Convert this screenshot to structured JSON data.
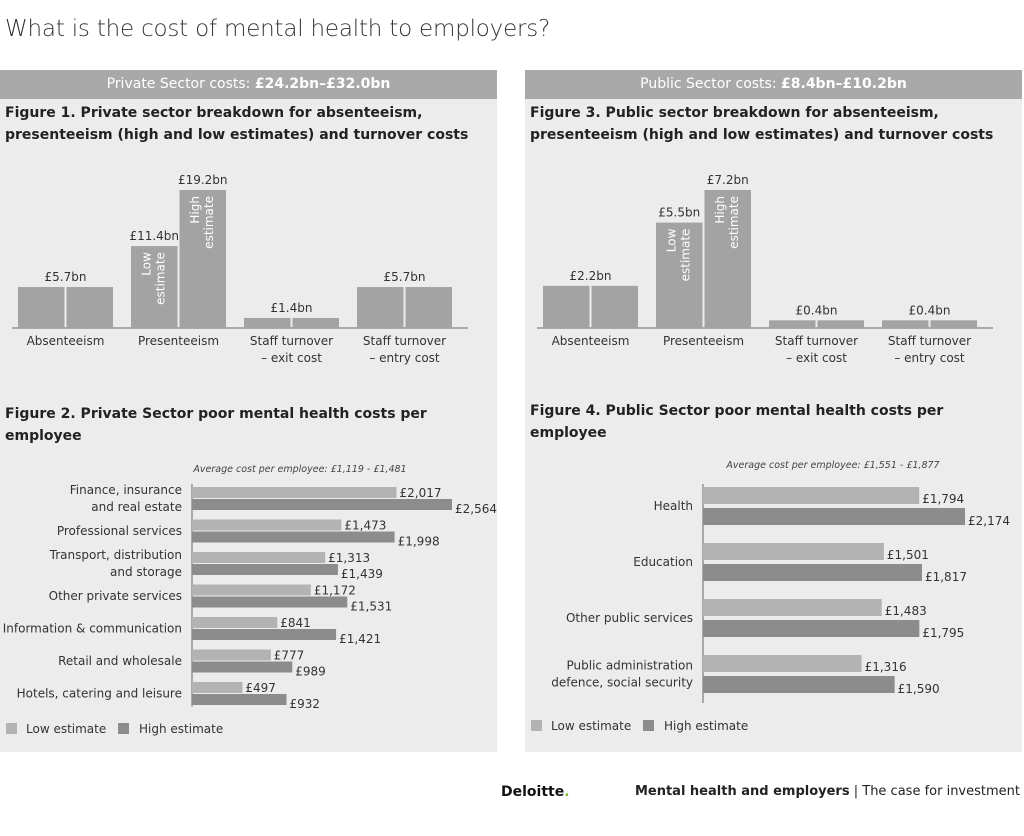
{
  "page_title": "What is the cost of mental health to employers?",
  "colors": {
    "panel_bg": "#ececec",
    "banner_bg": "#a9a9a9",
    "low": "#b3b3b3",
    "high": "#8c8c8c",
    "col": "#a3a3a3"
  },
  "private": {
    "banner_prefix": "Private Sector costs: ",
    "banner_value": "£24.2bn–£32.0bn",
    "fig1_title": "Figure 1. Private sector breakdown for absenteeism, presenteeism (high and low estimates) and turnover costs",
    "fig2_title": "Figure 2. Private Sector poor mental health costs per employee"
  },
  "public": {
    "banner_prefix": "Public Sector costs: ",
    "banner_value": "£8.4bn–£10.2bn",
    "fig3_title": "Figure 3. Public sector breakdown for absenteeism, presenteeism (high and low estimates) and turnover costs",
    "fig4_title": "Figure 4. Public Sector poor mental health costs per employee"
  },
  "legend": {
    "low": "Low estimate",
    "high": "High estimate"
  },
  "footer": {
    "brand": "Deloitte",
    "brand_dot": ".",
    "report_bold": "Mental health and employers",
    "report_sep": " | ",
    "report_rest": "The case for investment"
  },
  "chart_data": [
    {
      "id": "fig1",
      "type": "bar",
      "title": "Figure 1. Private sector breakdown for absenteeism, presenteeism (high and low estimates) and turnover costs",
      "ylim": [
        0,
        19.2
      ],
      "categories": [
        {
          "label": [
            "Absenteeism"
          ],
          "bars": [
            {
              "value": 5.7,
              "label": "£5.7bn"
            }
          ]
        },
        {
          "label": [
            "Presenteeism"
          ],
          "bars": [
            {
              "value": 11.4,
              "label": "£11.4bn",
              "inner": [
                "Low",
                "estimate"
              ]
            },
            {
              "value": 19.2,
              "label": "£19.2bn",
              "inner": [
                "High",
                "estimate"
              ]
            }
          ]
        },
        {
          "label": [
            "Staff turnover",
            "– exit cost"
          ],
          "bars": [
            {
              "value": 1.4,
              "label": "£1.4bn"
            }
          ]
        },
        {
          "label": [
            "Staff turnover",
            "– entry cost"
          ],
          "bars": [
            {
              "value": 5.7,
              "label": "£5.7bn"
            }
          ]
        }
      ]
    },
    {
      "id": "fig3",
      "type": "bar",
      "title": "Figure 3. Public sector breakdown for absenteeism, presenteeism (high and low estimates) and turnover costs",
      "ylim": [
        0,
        7.2
      ],
      "categories": [
        {
          "label": [
            "Absenteeism"
          ],
          "bars": [
            {
              "value": 2.2,
              "label": "£2.2bn"
            }
          ]
        },
        {
          "label": [
            "Presenteeism"
          ],
          "bars": [
            {
              "value": 5.5,
              "label": "£5.5bn",
              "inner": [
                "Low",
                "estimate"
              ]
            },
            {
              "value": 7.2,
              "label": "£7.2bn",
              "inner": [
                "High",
                "estimate"
              ]
            }
          ]
        },
        {
          "label": [
            "Staff turnover",
            "– exit cost"
          ],
          "bars": [
            {
              "value": 0.4,
              "label": "£0.4bn"
            }
          ]
        },
        {
          "label": [
            "Staff turnover",
            "– entry cost"
          ],
          "bars": [
            {
              "value": 0.4,
              "label": "£0.4bn"
            }
          ]
        }
      ]
    },
    {
      "id": "fig2",
      "type": "bar",
      "orientation": "horizontal",
      "title": "Figure 2. Private Sector poor mental health costs per employee",
      "subtitle": "Average cost per employee: £1,119 - £1,481",
      "xlim": [
        0,
        2564
      ],
      "series": [
        "Low estimate",
        "High estimate"
      ],
      "rows": [
        {
          "label": [
            "Finance, insurance",
            "and real estate"
          ],
          "low": 2017,
          "high": 2564,
          "low_label": "£2,017",
          "high_label": "£2,564"
        },
        {
          "label": [
            "Professional services"
          ],
          "low": 1473,
          "high": 1998,
          "low_label": "£1,473",
          "high_label": "£1,998"
        },
        {
          "label": [
            "Transport, distribution",
            "and storage"
          ],
          "low": 1313,
          "high": 1439,
          "low_label": "£1,313",
          "high_label": "£1,439"
        },
        {
          "label": [
            "Other private services"
          ],
          "low": 1172,
          "high": 1531,
          "low_label": "£1,172",
          "high_label": "£1,531"
        },
        {
          "label": [
            "Information & communication"
          ],
          "low": 841,
          "high": 1421,
          "low_label": "£841",
          "high_label": "£1,421"
        },
        {
          "label": [
            "Retail and wholesale"
          ],
          "low": 777,
          "high": 989,
          "low_label": "£777",
          "high_label": "£989"
        },
        {
          "label": [
            "Hotels, catering and leisure"
          ],
          "low": 497,
          "high": 932,
          "low_label": "£497",
          "high_label": "£932"
        }
      ]
    },
    {
      "id": "fig4",
      "type": "bar",
      "orientation": "horizontal",
      "title": "Figure 4. Public Sector poor mental health costs per employee",
      "subtitle": "Average cost per employee: £1,551 - £1,877",
      "xlim": [
        0,
        2174
      ],
      "series": [
        "Low estimate",
        "High estimate"
      ],
      "rows": [
        {
          "label": [
            "Health"
          ],
          "low": 1794,
          "high": 2174,
          "low_label": "£1,794",
          "high_label": "£2,174"
        },
        {
          "label": [
            "Education"
          ],
          "low": 1501,
          "high": 1817,
          "low_label": "£1,501",
          "high_label": "£1,817"
        },
        {
          "label": [
            "Other public services"
          ],
          "low": 1483,
          "high": 1795,
          "low_label": "£1,483",
          "high_label": "£1,795"
        },
        {
          "label": [
            "Public administration",
            "defence, social security"
          ],
          "low": 1316,
          "high": 1590,
          "low_label": "£1,316",
          "high_label": "£1,590"
        }
      ]
    }
  ]
}
